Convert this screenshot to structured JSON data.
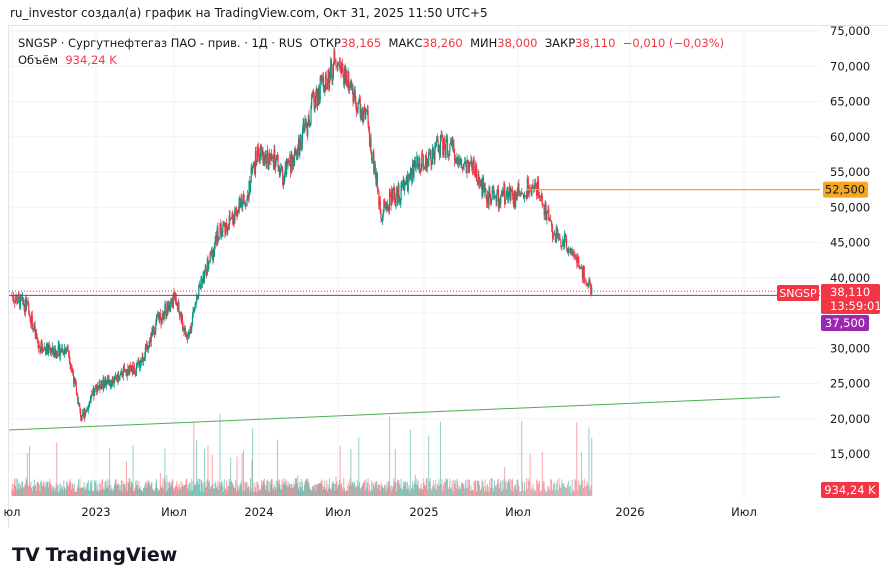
{
  "header": {
    "credit": "ru_investor создал(а) график на TradingView.com, Окт 31, 2025 11:50 UTC+5"
  },
  "legend": {
    "symbol": "SNGSP · Сургутнефтегаз ПАО - прив. · 1Д · RUS",
    "open_label": "ОТКР",
    "open": "38,165",
    "high_label": "МАКС",
    "high": "38,260",
    "low_label": "МИН",
    "low": "38,000",
    "close_label": "ЗАКР",
    "close": "38,110",
    "change": "−0,010 (−0,03%)",
    "volume_label": "Объём",
    "volume": "934,24 K"
  },
  "colors": {
    "up": "#089981",
    "down": "#f23645",
    "orange_line": "#f5a623",
    "purple_line": "#9c27b0",
    "trend": "#4caf50"
  },
  "price_labels": {
    "symbol": "SNGSP",
    "last": "38,110",
    "countdown": "13:59:01",
    "orange": "52,500",
    "purple": "37,500",
    "volume": "934,24 K"
  },
  "logo": "TradingView",
  "chart_data": {
    "type": "candlestick",
    "yaxis_ticks": [
      "75,000",
      "70,000",
      "65,000",
      "60,000",
      "55,000",
      "50,000",
      "45,000",
      "40,000",
      "30,000",
      "25,000",
      "20,000",
      "15,000"
    ],
    "ylim": [
      13000,
      76000
    ],
    "xaxis_ticks": [
      "юл",
      "2023",
      "Июл",
      "2024",
      "Июл",
      "2025",
      "Июл",
      "2026",
      "Июл"
    ],
    "monthly_close": {
      "months": [
        "2022-07",
        "2022-08",
        "2022-09",
        "2022-10",
        "2022-11",
        "2022-12",
        "2023-01",
        "2023-02",
        "2023-03",
        "2023-04",
        "2023-05",
        "2023-06",
        "2023-07",
        "2023-08",
        "2023-09",
        "2023-10",
        "2023-11",
        "2023-12",
        "2024-01",
        "2024-02",
        "2024-03",
        "2024-04",
        "2024-05",
        "2024-06",
        "2024-07",
        "2024-08",
        "2024-09",
        "2024-10",
        "2024-11",
        "2024-12",
        "2025-01",
        "2025-02",
        "2025-03",
        "2025-04",
        "2025-05",
        "2025-06",
        "2025-07",
        "2025-08",
        "2025-09",
        "2025-10"
      ],
      "values": [
        36,
        30,
        29.5,
        30,
        20,
        24,
        25.5,
        26,
        27,
        30,
        35,
        37,
        31,
        40,
        45,
        48,
        51,
        58,
        56,
        54,
        58,
        63,
        68,
        72,
        68,
        62,
        50,
        52,
        54,
        57,
        59,
        58,
        56,
        52,
        51,
        51,
        53,
        46,
        44,
        38.11
      ]
    },
    "horizontal_lines": [
      {
        "value": 52.5,
        "color": "orange"
      },
      {
        "value": 37.5,
        "color": "purple"
      },
      {
        "value": 38.11,
        "color": "red-dotted"
      }
    ],
    "trendline": {
      "from": [
        "2022-07",
        18.4
      ],
      "to": [
        "2026-06",
        23.1
      ]
    }
  }
}
